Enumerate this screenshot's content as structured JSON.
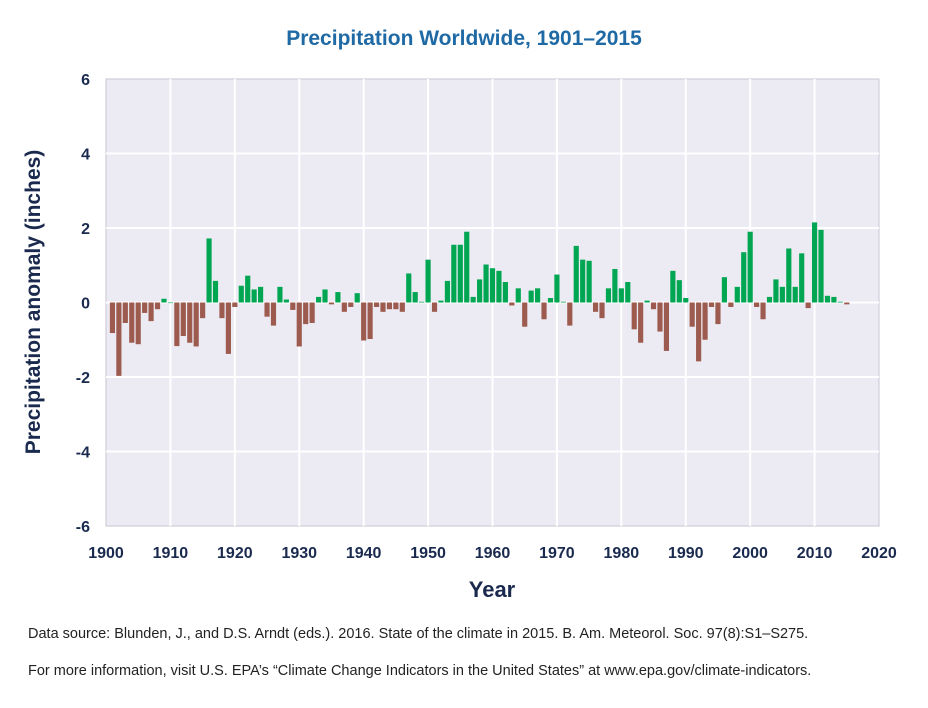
{
  "colors": {
    "positive": "#00a651",
    "negative": "#9c5b4e",
    "plot_background": "#eceaf3",
    "grid": "#ffffff",
    "title": "#1f6aa5",
    "axis_text": "#1a2a4e"
  },
  "footnotes": {
    "source": "Data source: Blunden, J., and D.S. Arndt (eds.). 2016. State of the climate in 2015. B. Am. Meteorol. Soc. 97(8):S1–S275.",
    "more_info": "For more information, visit U.S. EPA’s “Climate Change Indicators in the United States” at www.epa.gov/climate-indicators."
  },
  "chart_data": {
    "type": "bar",
    "title": "Precipitation Worldwide, 1901–2015",
    "xlabel": "Year",
    "ylabel": "Precipitation anomaly (inches)",
    "xlim": [
      1900,
      2020
    ],
    "ylim": [
      -6,
      6
    ],
    "x_ticks": [
      1900,
      1910,
      1920,
      1930,
      1940,
      1950,
      1960,
      1970,
      1980,
      1990,
      2000,
      2010,
      2020
    ],
    "y_ticks": [
      6,
      4,
      2,
      0,
      -2,
      -4,
      -6
    ],
    "grid": true,
    "x": [
      1901,
      1902,
      1903,
      1904,
      1905,
      1906,
      1907,
      1908,
      1909,
      1910,
      1911,
      1912,
      1913,
      1914,
      1915,
      1916,
      1917,
      1918,
      1919,
      1920,
      1921,
      1922,
      1923,
      1924,
      1925,
      1926,
      1927,
      1928,
      1929,
      1930,
      1931,
      1932,
      1933,
      1934,
      1935,
      1936,
      1937,
      1938,
      1939,
      1940,
      1941,
      1942,
      1943,
      1944,
      1945,
      1946,
      1947,
      1948,
      1949,
      1950,
      1951,
      1952,
      1953,
      1954,
      1955,
      1956,
      1957,
      1958,
      1959,
      1960,
      1961,
      1962,
      1963,
      1964,
      1965,
      1966,
      1967,
      1968,
      1969,
      1970,
      1971,
      1972,
      1973,
      1974,
      1975,
      1976,
      1977,
      1978,
      1979,
      1980,
      1981,
      1982,
      1983,
      1984,
      1985,
      1986,
      1987,
      1988,
      1989,
      1990,
      1991,
      1992,
      1993,
      1994,
      1995,
      1996,
      1997,
      1998,
      1999,
      2000,
      2001,
      2002,
      2003,
      2004,
      2005,
      2006,
      2007,
      2008,
      2009,
      2010,
      2011,
      2012,
      2013,
      2014,
      2015
    ],
    "values": [
      -0.82,
      -1.97,
      -0.55,
      -1.08,
      -1.12,
      -0.28,
      -0.5,
      -0.18,
      0.1,
      0,
      -1.17,
      -0.9,
      -1.08,
      -1.18,
      -0.42,
      1.72,
      0.58,
      -0.42,
      -1.38,
      -0.12,
      0.45,
      0.72,
      0.35,
      0.42,
      -0.38,
      -0.62,
      0.42,
      0.08,
      -0.2,
      -1.18,
      -0.58,
      -0.55,
      0.15,
      0.35,
      -0.05,
      0.28,
      -0.25,
      -0.12,
      0.25,
      -1.02,
      -0.98,
      -0.12,
      -0.25,
      -0.18,
      -0.18,
      -0.25,
      0.78,
      0.28,
      0.02,
      1.15,
      -0.25,
      0.05,
      0.58,
      1.55,
      1.55,
      1.9,
      0.15,
      0.62,
      1.02,
      0.92,
      0.85,
      0.55,
      -0.08,
      0.38,
      -0.65,
      0.32,
      0.38,
      -0.45,
      0.12,
      0.75,
      0.02,
      -0.62,
      1.52,
      1.15,
      1.12,
      -0.25,
      -0.42,
      0.38,
      0.9,
      0.38,
      0.55,
      -0.72,
      -1.08,
      0.05,
      -0.18,
      -0.78,
      -1.3,
      0.85,
      0.6,
      0.12,
      -0.65,
      -1.58,
      -1.0,
      -0.12,
      -0.58,
      0.68,
      -0.12,
      0.42,
      1.35,
      1.9,
      -0.12,
      -0.45,
      0.15,
      0.62,
      0.42,
      1.45,
      0.42,
      1.32,
      -0.15,
      2.15,
      1.95,
      0.18,
      0.15,
      0.02,
      -0.05
    ]
  }
}
